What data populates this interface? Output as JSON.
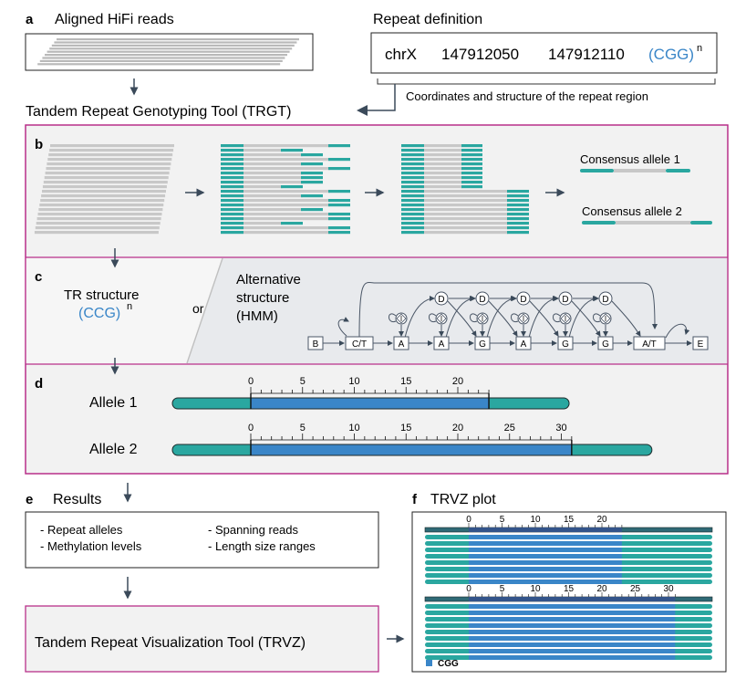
{
  "panel_a": {
    "letter": "a",
    "aligned_title": "Aligned HiFi reads",
    "repeat_title": "Repeat definition",
    "repeat_chrom": "chrX",
    "repeat_start": "147912050",
    "repeat_end": "147912110",
    "repeat_motif": "(CGG)",
    "repeat_sup": "n",
    "coord_note": "Coordinates and structure of the repeat region",
    "tool_title": "Tandem Repeat Genotyping Tool (TRGT)"
  },
  "panel_b": {
    "letter": "b",
    "consensus_1": "Consensus allele 1",
    "consensus_2": "Consensus allele 2"
  },
  "panel_c": {
    "letter": "c",
    "tr_line1": "TR structure",
    "tr_motif": "(CCG)",
    "tr_sup": "n",
    "or": "or",
    "alt_line1": "Alternative",
    "alt_line2": "structure",
    "alt_line3": "(HMM)",
    "hmm": {
      "seq_nodes": [
        "B",
        "C/T",
        "A",
        "A",
        "G",
        "A",
        "G",
        "G",
        "A/T",
        "E"
      ],
      "delete_label": "D",
      "insert_label": "I"
    }
  },
  "panel_d": {
    "letter": "d",
    "allele1": {
      "label": "Allele 1",
      "ticks": [
        "0",
        "5",
        "10",
        "15",
        "20"
      ],
      "repeat_units": 23
    },
    "allele2": {
      "label": "Allele 2",
      "ticks": [
        "0",
        "5",
        "10",
        "15",
        "20",
        "25",
        "30"
      ],
      "repeat_units": 31
    }
  },
  "panel_e": {
    "letter": "e",
    "results_title": "Results",
    "items": [
      "- Repeat alleles",
      "- Methylation levels",
      "- Spanning reads",
      "- Length size ranges"
    ],
    "trvz_tool": "Tandem Repeat Visualization Tool (TRVZ)"
  },
  "panel_f": {
    "letter": "f",
    "title": "TRVZ plot",
    "top_ticks": [
      "0",
      "5",
      "10",
      "15",
      "20"
    ],
    "bottom_ticks": [
      "0",
      "5",
      "10",
      "15",
      "20",
      "25",
      "30"
    ],
    "legend": "CGG"
  },
  "colors": {
    "teal": "#2aa7a0",
    "blue": "#3a86c8",
    "magenta": "#b8318a",
    "grey_read": "#c8c8c8",
    "panel_bg": "#f2f2f2",
    "motif_blue": "#3a86c8"
  }
}
